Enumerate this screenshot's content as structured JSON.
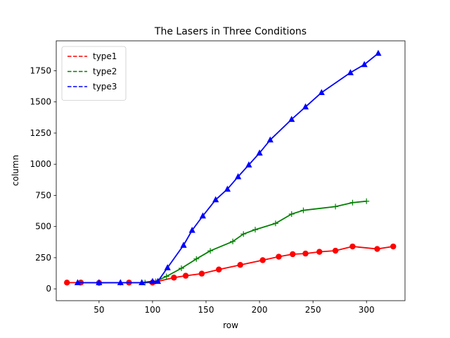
{
  "chart_data": {
    "type": "line",
    "title": "The Lasers in Three Conditions",
    "xlabel": "row",
    "ylabel": "column",
    "xlim": [
      10,
      336
    ],
    "ylim": [
      -95,
      1990
    ],
    "xticks": [
      50,
      100,
      150,
      200,
      250,
      300
    ],
    "yticks": [
      0,
      250,
      500,
      750,
      1000,
      1250,
      1500,
      1750
    ],
    "grid": false,
    "legend_position": "upper left",
    "series": [
      {
        "name": "type1",
        "color": "#ff0000",
        "marker": "circle",
        "x": [
          20,
          33,
          50,
          78,
          100,
          120,
          131,
          146,
          162,
          182,
          203,
          218,
          231,
          243,
          256,
          271,
          287,
          310,
          325
        ],
        "y": [
          50,
          50,
          48,
          50,
          50,
          90,
          105,
          122,
          155,
          192,
          230,
          258,
          278,
          283,
          297,
          306,
          340,
          320,
          340
        ]
      },
      {
        "name": "type2",
        "color": "#008000",
        "marker": "plus",
        "x": [
          32,
          50,
          70,
          93,
          103,
          113,
          127,
          141,
          154,
          175,
          185,
          196,
          215,
          230,
          241,
          271,
          287,
          300
        ],
        "y": [
          50,
          50,
          50,
          50,
          60,
          100,
          165,
          240,
          305,
          380,
          440,
          475,
          525,
          600,
          630,
          660,
          692,
          703
        ]
      },
      {
        "name": "type3",
        "color": "#0000ff",
        "marker": "triangle",
        "x": [
          30,
          50,
          70,
          90,
          100,
          105,
          114,
          129,
          137,
          147,
          159,
          170,
          180,
          190,
          200,
          210,
          230,
          243,
          258,
          285,
          298,
          311
        ],
        "y": [
          50,
          50,
          50,
          50,
          60,
          60,
          170,
          350,
          470,
          585,
          715,
          800,
          900,
          995,
          1090,
          1195,
          1360,
          1460,
          1575,
          1735,
          1800,
          1890
        ]
      }
    ]
  }
}
